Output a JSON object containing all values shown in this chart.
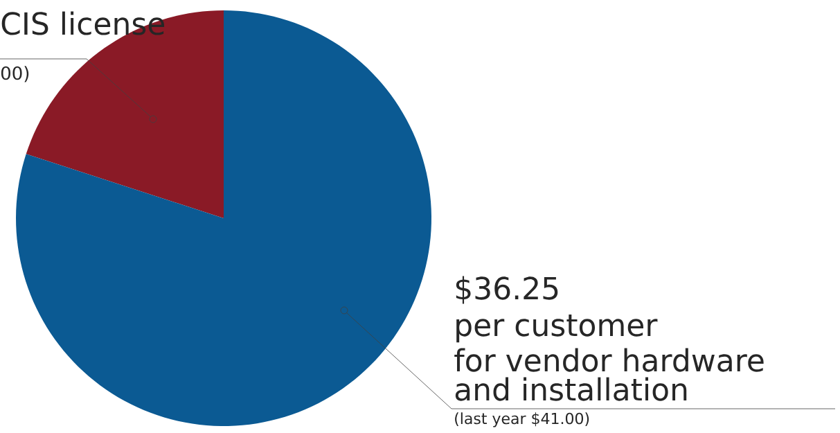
{
  "chart_data": {
    "type": "pie",
    "categories": [
      "CIS license",
      "$36.25"
    ],
    "values": [
      20,
      80
    ],
    "colors": [
      "#8a1a26",
      "#0b5a93"
    ],
    "annotations": [
      "00)",
      "per customer",
      "for vendor hardware",
      "and installation",
      "(last year $41.00)"
    ]
  }
}
